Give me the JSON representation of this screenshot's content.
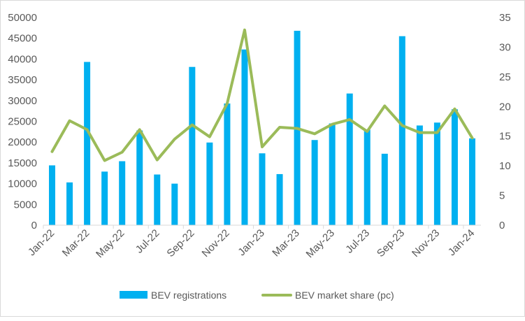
{
  "chart_data": {
    "type": "bar+line",
    "title": "",
    "categories": [
      "Jan-22",
      "Feb-22",
      "Mar-22",
      "Apr-22",
      "May-22",
      "Jun-22",
      "Jul-22",
      "Aug-22",
      "Sep-22",
      "Oct-22",
      "Nov-22",
      "Dec-22",
      "Jan-23",
      "Feb-23",
      "Mar-23",
      "Apr-23",
      "May-23",
      "Jun-23",
      "Jul-23",
      "Aug-23",
      "Sep-23",
      "Oct-23",
      "Nov-23",
      "Dec-23",
      "Jan-24"
    ],
    "tick_labels": [
      "Jan-22",
      "Mar-22",
      "May-22",
      "Jul-22",
      "Sep-22",
      "Nov-22",
      "Jan-23",
      "Mar-23",
      "May-23",
      "Jul-23",
      "Sep-23",
      "Nov-23",
      "Jan-24"
    ],
    "series": [
      {
        "name": "BEV registrations",
        "kind": "bar",
        "axis": "left",
        "color": "#00b0f0",
        "values": [
          14400,
          10300,
          39300,
          12900,
          15400,
          22800,
          12200,
          10000,
          38100,
          19900,
          29300,
          42300,
          17300,
          12300,
          46800,
          20500,
          24500,
          31700,
          23000,
          17200,
          45500,
          24000,
          24700,
          27900,
          20900
        ]
      },
      {
        "name": "BEV market share (pc)",
        "kind": "line",
        "axis": "right",
        "color": "#9bbb59",
        "values": [
          12.4,
          17.6,
          16.1,
          10.9,
          12.3,
          16.1,
          11.0,
          14.5,
          16.9,
          14.9,
          20.5,
          32.9,
          13.2,
          16.5,
          16.3,
          15.4,
          17.0,
          17.8,
          15.8,
          20.1,
          16.8,
          15.6,
          15.6,
          19.6,
          14.7
        ]
      }
    ],
    "y_left": {
      "min": 0,
      "max": 50000,
      "step": 5000,
      "labels": [
        "0",
        "5000",
        "10000",
        "15000",
        "20000",
        "25000",
        "30000",
        "35000",
        "40000",
        "45000",
        "50000"
      ]
    },
    "y_right": {
      "min": 0,
      "max": 35,
      "step": 5,
      "labels": [
        "0",
        "5",
        "10",
        "15",
        "20",
        "25",
        "30",
        "35"
      ]
    },
    "grid": false,
    "legend_position": "bottom",
    "legend": [
      {
        "label": "BEV registrations",
        "kind": "bar",
        "color": "#00b0f0"
      },
      {
        "label": "BEV market share (pc)",
        "kind": "line",
        "color": "#9bbb59"
      }
    ],
    "axis_color": "#d9d9d9"
  }
}
